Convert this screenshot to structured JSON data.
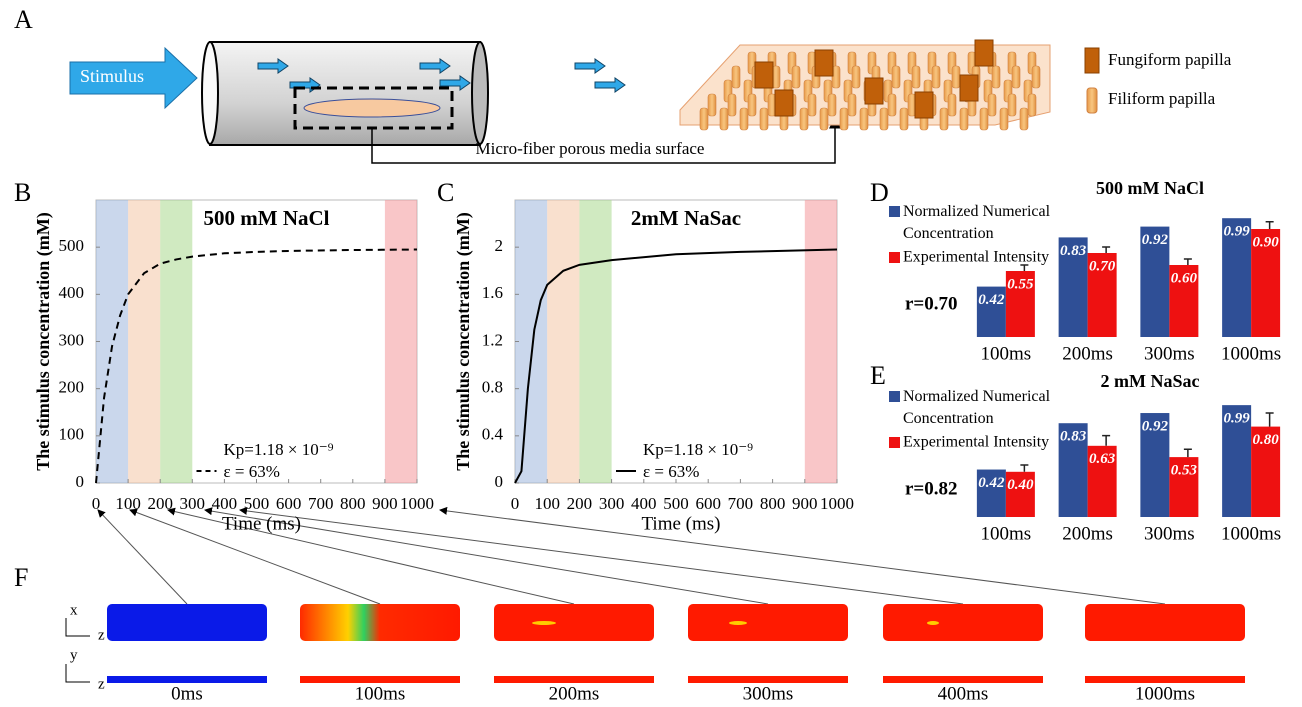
{
  "panel_labels": [
    "A",
    "B",
    "C",
    "D",
    "E",
    "F"
  ],
  "diagram": {
    "stimulus": "Stimulus",
    "surface_label": "Micro-fiber porous media surface",
    "legend": [
      "Fungiform papilla",
      "Filiform papilla"
    ]
  },
  "chart_data": [
    {
      "type": "line",
      "title": "500 mM NaCl",
      "y_label": "The stimulus concentration (mM)",
      "x_label": "Time (ms)",
      "x": [
        0,
        25,
        50,
        75,
        100,
        150,
        200,
        250,
        300,
        400,
        500,
        600,
        800,
        1000
      ],
      "series": [
        {
          "color": "#000000",
          "dashed": true,
          "values": [
            0,
            180,
            290,
            355,
            400,
            445,
            465,
            474,
            480,
            487,
            490,
            492,
            494,
            495
          ]
        }
      ],
      "bands": [
        {
          "start": 0,
          "end": 100,
          "color": "#9fb7dd"
        },
        {
          "start": 100,
          "end": 200,
          "color": "#f4c6a6"
        },
        {
          "start": 200,
          "end": 300,
          "color": "#a9d88e"
        },
        {
          "start": 900,
          "end": 1000,
          "color": "#f4979b"
        }
      ],
      "annotations": [
        "Kp=1.18 × 10⁻⁹",
        "ε = 63%"
      ],
      "xlim": [
        0,
        1000
      ],
      "xticks": [
        0,
        100,
        200,
        300,
        400,
        500,
        600,
        700,
        800,
        900,
        1000
      ],
      "ylim": [
        0,
        600
      ],
      "yticks": [
        0,
        100,
        200,
        300,
        400,
        500
      ]
    },
    {
      "type": "line",
      "title": "2mM NaSac",
      "y_label": "The stimulus concentration (mM)",
      "x_label": "Time (ms)",
      "x": [
        0,
        20,
        40,
        60,
        80,
        100,
        150,
        200,
        300,
        500,
        700,
        1000
      ],
      "series": [
        {
          "color": "#000000",
          "dashed": false,
          "values": [
            0,
            0.1,
            0.8,
            1.3,
            1.55,
            1.68,
            1.8,
            1.85,
            1.89,
            1.94,
            1.96,
            1.98
          ]
        }
      ],
      "bands": [
        {
          "start": 0,
          "end": 100,
          "color": "#9fb7dd"
        },
        {
          "start": 100,
          "end": 200,
          "color": "#f4c6a6"
        },
        {
          "start": 200,
          "end": 300,
          "color": "#a9d88e"
        },
        {
          "start": 900,
          "end": 1000,
          "color": "#f4979b"
        }
      ],
      "annotations": [
        "Kp=1.18 × 10⁻⁹",
        "ε = 63%"
      ],
      "xlim": [
        0,
        1000
      ],
      "xticks": [
        0,
        100,
        200,
        300,
        400,
        500,
        600,
        700,
        800,
        900,
        1000
      ],
      "ylim": [
        0,
        2.4
      ],
      "yticks": [
        0,
        0.4,
        0.8,
        1.2,
        1.6,
        2
      ]
    },
    {
      "type": "bar",
      "title": "500 mM NaCl",
      "annotation": "r=0.70",
      "categories": [
        "100ms",
        "200ms",
        "300ms",
        "1000ms"
      ],
      "series": [
        {
          "name": "Normalized Numerical Concentration",
          "color": "#2f4f96",
          "values": [
            0.42,
            0.83,
            0.92,
            0.99
          ],
          "value_labels": [
            "0.42",
            "0.83",
            "0.92",
            "0.99"
          ]
        },
        {
          "name": "Experimental Intensity",
          "color": "#ee1111",
          "values": [
            0.55,
            0.7,
            0.6,
            0.9
          ],
          "value_labels": [
            "0.55",
            "0.70",
            "0.60",
            "0.90"
          ],
          "errors": [
            0.05,
            0.05,
            0.05,
            0.06
          ]
        }
      ],
      "ylim": [
        0,
        1
      ]
    },
    {
      "type": "bar",
      "title": "2 mM NaSac",
      "annotation": "r=0.82",
      "categories": [
        "100ms",
        "200ms",
        "300ms",
        "1000ms"
      ],
      "series": [
        {
          "name": "Normalized Numerical Concentration",
          "color": "#2f4f96",
          "values": [
            0.42,
            0.83,
            0.92,
            0.99
          ],
          "value_labels": [
            "0.42",
            "0.83",
            "0.92",
            "0.99"
          ]
        },
        {
          "name": "Experimental Intensity",
          "color": "#ee1111",
          "values": [
            0.4,
            0.63,
            0.53,
            0.8
          ],
          "value_labels": [
            "0.40",
            "0.63",
            "0.53",
            "0.80"
          ],
          "errors": [
            0.06,
            0.09,
            0.07,
            0.12
          ]
        }
      ],
      "ylim": [
        0,
        1
      ]
    }
  ],
  "simulation": {
    "times": [
      "0ms",
      "100ms",
      "200ms",
      "300ms",
      "400ms",
      "1000ms"
    ],
    "axes": [
      "x",
      "z",
      "y",
      "z"
    ]
  }
}
